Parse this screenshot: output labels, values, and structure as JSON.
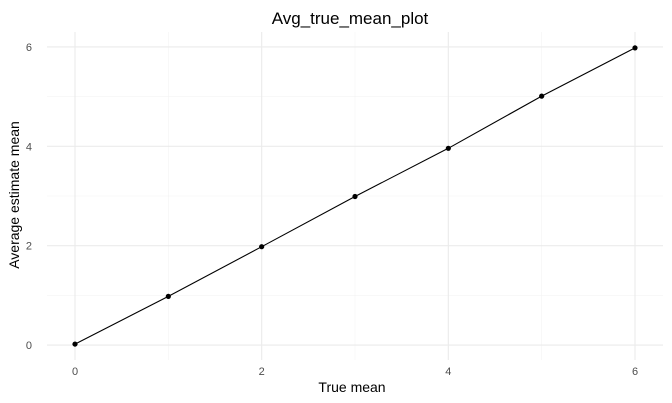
{
  "chart_data": {
    "type": "line",
    "title": "Avg_true_mean_plot",
    "xlabel": "True mean",
    "ylabel": "Average estimate mean",
    "x": [
      0,
      1,
      2,
      3,
      4,
      5,
      6
    ],
    "series": [
      {
        "values": [
          0.02,
          0.98,
          1.98,
          2.99,
          3.96,
          5.01,
          5.98
        ]
      }
    ],
    "xlim": [
      -0.3,
      6.3
    ],
    "ylim": [
      -0.3,
      6.3
    ],
    "x_ticks": [
      "0",
      "2",
      "4",
      "6"
    ],
    "y_ticks": [
      "0",
      "2",
      "4",
      "6"
    ],
    "grid": true,
    "legend": "none",
    "line_color": "#000000",
    "point_color": "#000000",
    "grid_color": "#ebebeb"
  }
}
